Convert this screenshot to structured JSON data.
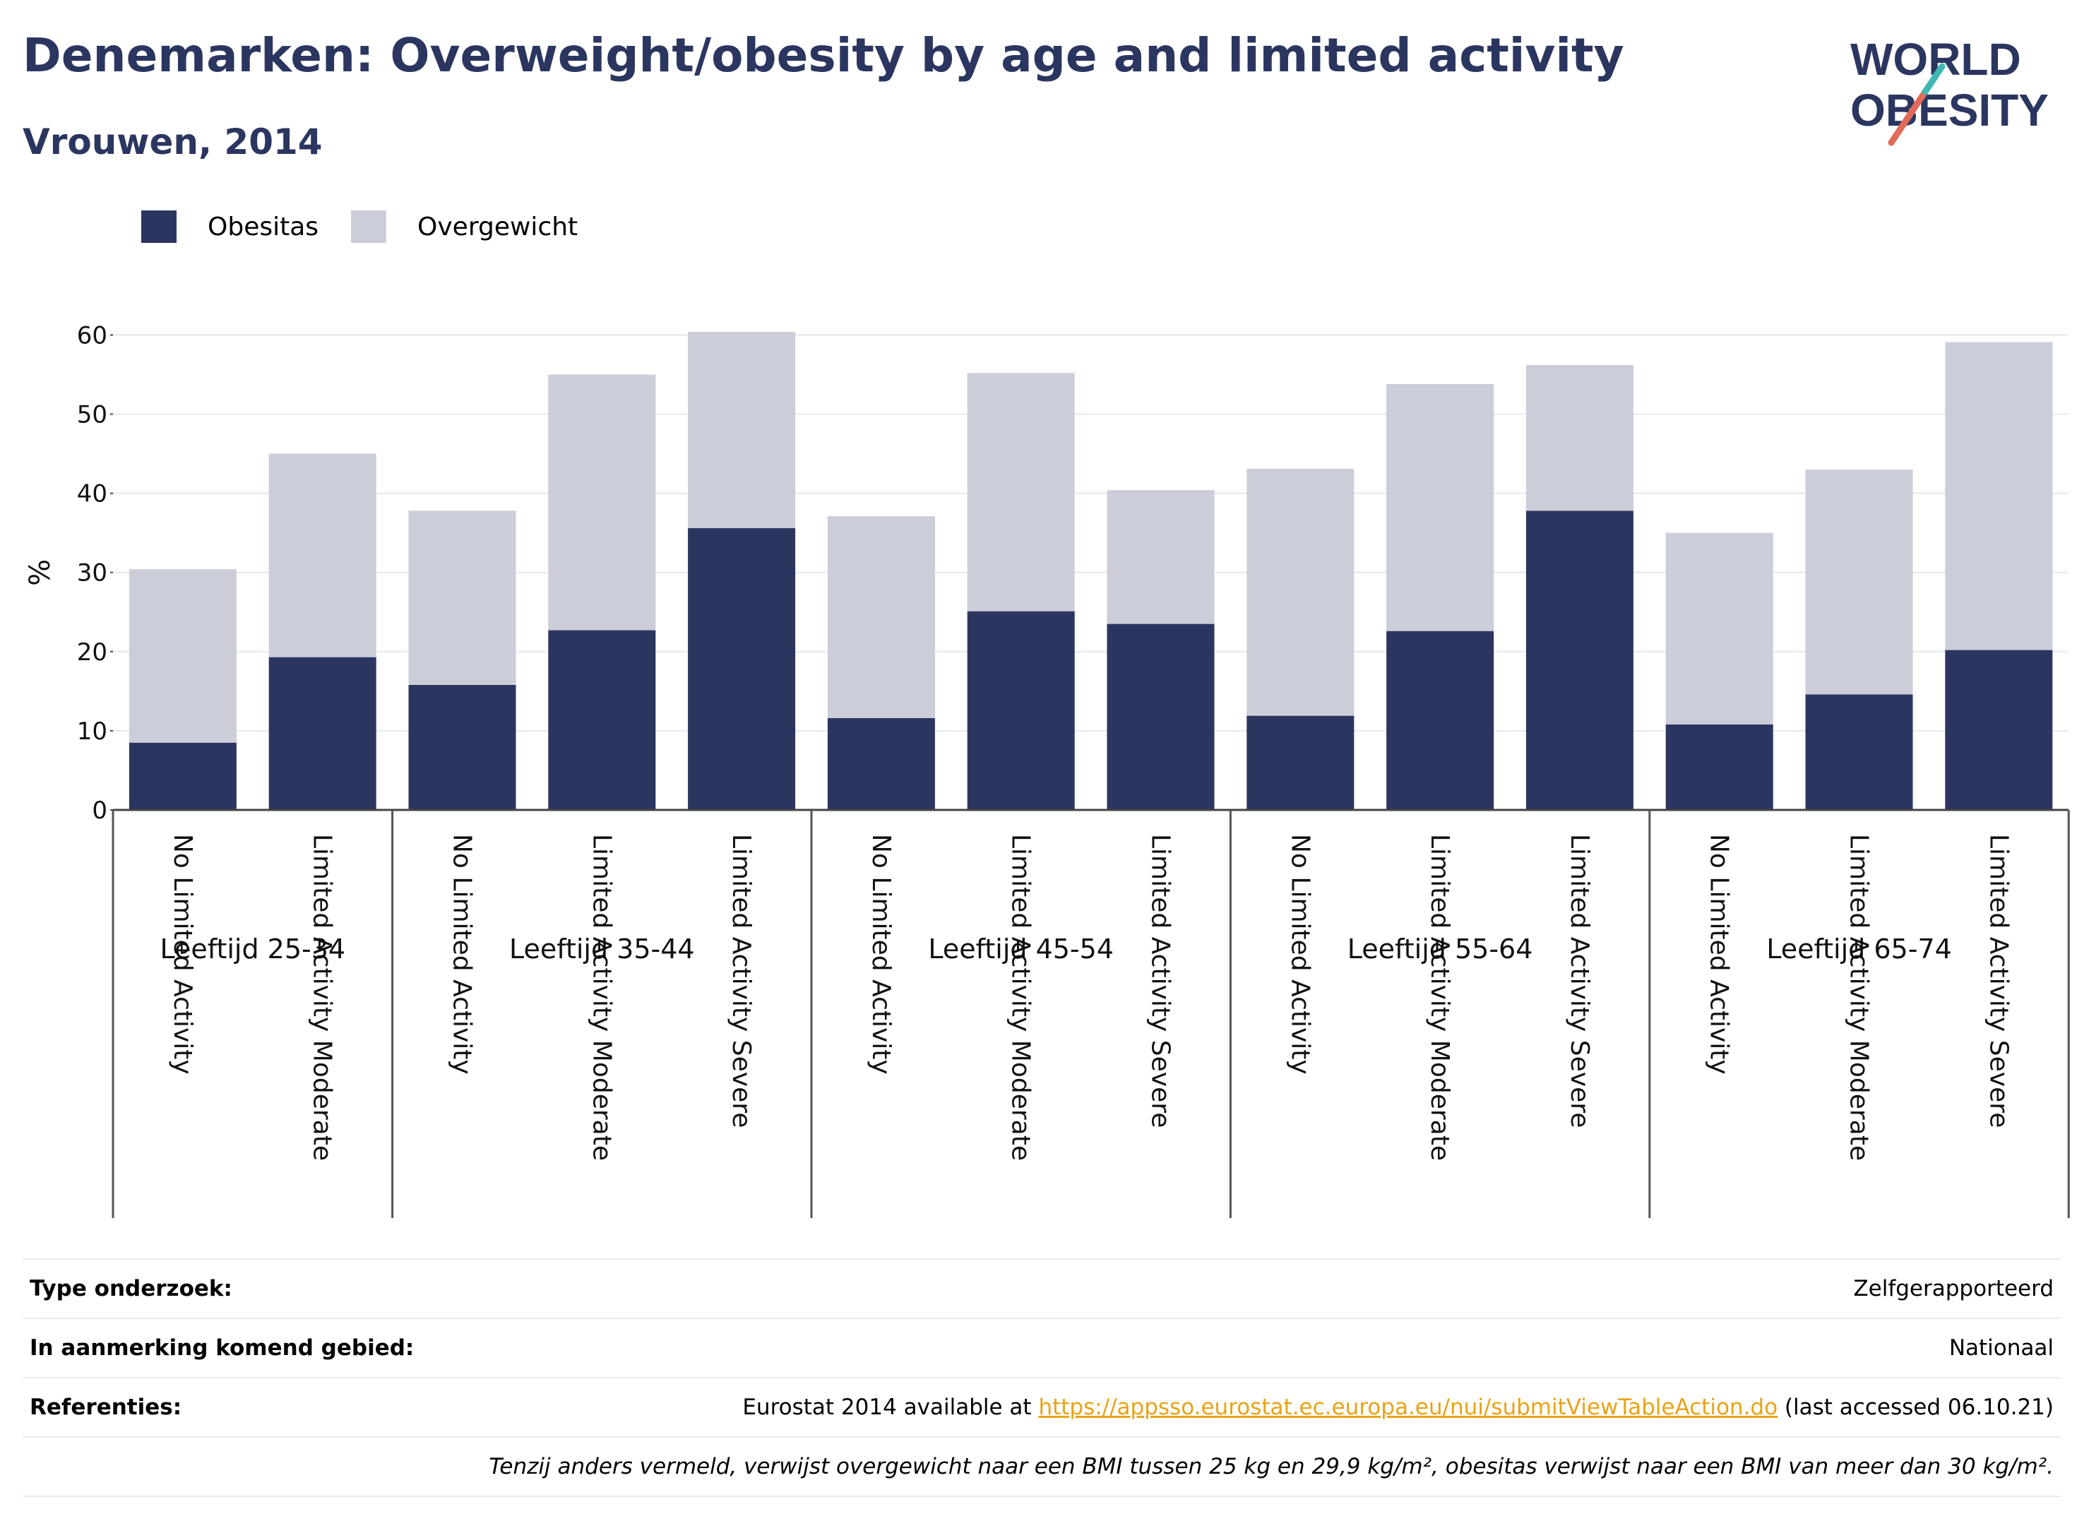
{
  "header": {
    "title": "Denemarken: Overweight/obesity by age and limited activity",
    "subtitle": "Vrouwen, 2014"
  },
  "logo": {
    "line1": "WORLD",
    "line2": "OBESITY"
  },
  "legend": [
    {
      "label": "Obesitas",
      "color": "#2b3660"
    },
    {
      "label": "Overgewicht",
      "color": "#cbcdd9"
    }
  ],
  "chart_data": {
    "type": "bar",
    "stacked": true,
    "ylabel": "%",
    "ylim": [
      0,
      62
    ],
    "yticks": [
      0,
      10,
      20,
      30,
      40,
      50,
      60
    ],
    "grid": true,
    "legend_position": "top-left",
    "groups": [
      {
        "label": "Leeftijd 25-34",
        "categories": [
          "No Limited Activity",
          "Limited Activity Moderate"
        ]
      },
      {
        "label": "Leeftijd 35-44",
        "categories": [
          "No Limited Activity",
          "Limited Activity Moderate",
          "Limited Activity Severe"
        ]
      },
      {
        "label": "Leeftijd 45-54",
        "categories": [
          "No Limited Activity",
          "Limited Activity Moderate",
          "Limited Activity Severe"
        ]
      },
      {
        "label": "Leeftijd 55-64",
        "categories": [
          "No Limited Activity",
          "Limited Activity Moderate",
          "Limited Activity Severe"
        ]
      },
      {
        "label": "Leeftijd 65-74",
        "categories": [
          "No Limited Activity",
          "Limited Activity Moderate",
          "Limited Activity Severe"
        ]
      }
    ],
    "series": [
      {
        "name": "Obesitas",
        "color": "#2b3660",
        "values": [
          8.5,
          19.3,
          15.8,
          22.7,
          35.6,
          11.6,
          25.1,
          23.5,
          11.9,
          22.6,
          37.8,
          10.8,
          14.6,
          20.2
        ]
      },
      {
        "name": "Overgewicht",
        "color": "#cbcdd9",
        "values": [
          21.9,
          25.7,
          22.0,
          32.3,
          24.8,
          25.5,
          30.1,
          16.9,
          31.2,
          31.2,
          18.4,
          24.2,
          28.4,
          38.9
        ]
      }
    ]
  },
  "footer": {
    "rows": [
      {
        "key": "Type onderzoek:",
        "value": "Zelfgerapporteerd"
      },
      {
        "key": "In aanmerking komend gebied:",
        "value": "Nationaal"
      }
    ],
    "ref_key": "Referenties:",
    "ref_prefix": "Eurostat 2014 available at ",
    "ref_link": "https://appsso.eurostat.ec.europa.eu/nui/submitViewTableAction.do",
    "ref_suffix": " (last accessed 06.10.21)",
    "note": "Tenzij anders vermeld, verwijst overgewicht naar een BMI tussen 25 kg en 29,9 kg/m², obesitas verwijst naar een BMI van meer dan 30 kg/m²."
  }
}
